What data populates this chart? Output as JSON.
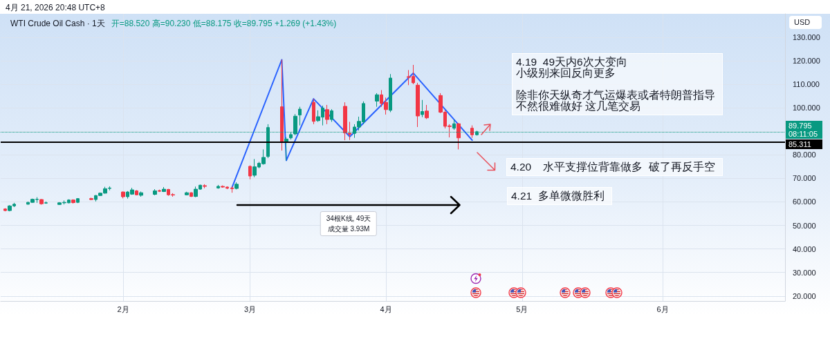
{
  "chart_data": {
    "type": "candlestick",
    "title": "WTI Crude Oil Cash · 1天",
    "subtitle": "开=88.520 高=90.230 低=88.175 收=89.795 +1.269 (+1.43%)",
    "ylabel": "USD",
    "annotations": [
      "4月 21, 2026 20:48 UTC+8",
      "4.19  49天内6次大变向",
      "小级别来回反向更多",
      "除非你天纵奇才气运爆表或者特朗普指导",
      "不然很难做好 这几笔交易",
      "4.20    水平支撑位背靠做多  破了再反手空",
      "4.21  多单微微胜利",
      "34根K线, 49天",
      "成交量 3.93M"
    ],
    "x": [
      "2026-01-07",
      "2026-01-08",
      "2026-01-09",
      "2026-01-12",
      "2026-01-13",
      "2026-01-14",
      "2026-01-15",
      "2026-01-16",
      "2026-01-19",
      "2026-01-20",
      "2026-01-21",
      "2026-01-22",
      "2026-01-23",
      "2026-01-26",
      "2026-01-27",
      "2026-01-28",
      "2026-01-29",
      "2026-01-30",
      "2026-02-02",
      "2026-02-03",
      "2026-02-04",
      "2026-02-05",
      "2026-02-06",
      "2026-02-09",
      "2026-02-10",
      "2026-02-11",
      "2026-02-12",
      "2026-02-13",
      "2026-02-16",
      "2026-02-17",
      "2026-02-18",
      "2026-02-19",
      "2026-02-20",
      "2026-02-23",
      "2026-02-24",
      "2026-02-25",
      "2026-02-26",
      "2026-02-27",
      "2026-03-02",
      "2026-03-03",
      "2026-03-04",
      "2026-03-05",
      "2026-03-06",
      "2026-03-09",
      "2026-03-10",
      "2026-03-11",
      "2026-03-12",
      "2026-03-13",
      "2026-03-16",
      "2026-03-17",
      "2026-03-18",
      "2026-03-19",
      "2026-03-20",
      "2026-03-23",
      "2026-03-24",
      "2026-03-25",
      "2026-03-26",
      "2026-03-27",
      "2026-03-30",
      "2026-03-31",
      "2026-04-01",
      "2026-04-02",
      "2026-04-06",
      "2026-04-07",
      "2026-04-08",
      "2026-04-09",
      "2026-04-10",
      "2026-04-13",
      "2026-04-14",
      "2026-04-15",
      "2026-04-16",
      "2026-04-17",
      "2026-04-20",
      "2026-04-21"
    ],
    "ohlc": [
      [
        57.0,
        57.3,
        56.0,
        56.3
      ],
      [
        56.3,
        58.6,
        56.0,
        58.3
      ],
      [
        58.3,
        59.6,
        57.8,
        59.0
      ],
      [
        59.0,
        60.1,
        58.8,
        59.8
      ],
      [
        59.8,
        61.4,
        59.6,
        61.1
      ],
      [
        61.0,
        62.0,
        59.6,
        61.1
      ],
      [
        61.0,
        61.2,
        58.8,
        59.2
      ],
      [
        59.5,
        60.2,
        59.2,
        59.6
      ],
      [
        58.9,
        59.9,
        58.7,
        59.6
      ],
      [
        59.6,
        60.6,
        58.9,
        59.8
      ],
      [
        59.6,
        61.1,
        59.4,
        60.8
      ],
      [
        60.8,
        61.1,
        59.3,
        59.7
      ],
      [
        59.8,
        61.6,
        59.5,
        61.4
      ],
      [
        61.4,
        61.8,
        60.7,
        61.0
      ],
      [
        61.0,
        62.9,
        60.2,
        62.7
      ],
      [
        62.7,
        64.0,
        62.5,
        63.7
      ],
      [
        63.7,
        66.4,
        63.5,
        65.6
      ],
      [
        65.7,
        66.6,
        64.9,
        65.9
      ],
      [
        64.2,
        64.4,
        61.5,
        62.2
      ],
      [
        62.2,
        64.6,
        61.4,
        64.2
      ],
      [
        63.3,
        66.0,
        63.0,
        65.1
      ],
      [
        64.7,
        65.0,
        62.8,
        63.0
      ],
      [
        62.8,
        64.4,
        62.2,
        63.9
      ],
      [
        63.2,
        65.4,
        62.8,
        64.7
      ],
      [
        64.8,
        65.2,
        64.2,
        64.5
      ],
      [
        64.4,
        66.3,
        64.2,
        65.4
      ],
      [
        65.3,
        65.5,
        62.6,
        63.0
      ],
      [
        63.1,
        63.7,
        62.2,
        62.9
      ],
      [
        63.0,
        64.3,
        62.8,
        63.9
      ],
      [
        63.9,
        64.1,
        62.1,
        62.3
      ],
      [
        62.3,
        66.5,
        62.0,
        65.4
      ],
      [
        65.4,
        67.3,
        65.2,
        67.1
      ],
      [
        66.9,
        67.5,
        65.8,
        66.6
      ],
      [
        65.9,
        67.2,
        65.6,
        66.6
      ],
      [
        66.6,
        67.0,
        66.0,
        66.3
      ],
      [
        66.3,
        66.6,
        65.4,
        65.8
      ],
      [
        65.9,
        66.6,
        63.9,
        65.6
      ],
      [
        65.7,
        68.3,
        65.3,
        67.5
      ],
      [
        75.1,
        75.5,
        69.6,
        71.0
      ],
      [
        71.3,
        78.2,
        70.5,
        74.9
      ],
      [
        74.8,
        77.0,
        74.3,
        76.4
      ],
      [
        76.2,
        82.3,
        75.8,
        78.9
      ],
      [
        79.3,
        93.0,
        78.6,
        91.6
      ],
      [
        100.4,
        120.4,
        81.8,
        85.2
      ],
      [
        85.4,
        87.5,
        77.6,
        86.7
      ],
      [
        87.2,
        89.5,
        86.5,
        88.6
      ],
      [
        88.9,
        97.3,
        88.3,
        96.4
      ],
      [
        96.9,
        100.4,
        92.5,
        99.4
      ],
      [
        102.3,
        103.8,
        93.0,
        94.2
      ],
      [
        94.5,
        98.9,
        94.0,
        96.2
      ],
      [
        96.0,
        100.9,
        92.5,
        99.9
      ],
      [
        99.2,
        101.2,
        93.0,
        95.0
      ],
      [
        95.0,
        99.4,
        94.0,
        98.7
      ],
      [
        100.6,
        102.3,
        86.2,
        89.3
      ],
      [
        89.2,
        94.0,
        86.3,
        88.7
      ],
      [
        89.1,
        93.0,
        87.2,
        91.8
      ],
      [
        91.8,
        96.2,
        90.3,
        94.2
      ],
      [
        94.0,
        102.7,
        93.0,
        101.8
      ],
      [
        102.8,
        106.2,
        100.4,
        105.5
      ],
      [
        105.5,
        107.5,
        100.4,
        101.8
      ],
      [
        102.3,
        104.3,
        97.1,
        99.2
      ],
      [
        98.9,
        114.3,
        98.1,
        112.6
      ],
      [
        113.2,
        116.0,
        109.6,
        112.9
      ],
      [
        113.3,
        118.2,
        110.0,
        110.6
      ],
      [
        109.6,
        110.6,
        91.8,
        96.5
      ],
      [
        97.1,
        103.3,
        96.0,
        98.4
      ],
      [
        98.6,
        101.2,
        95.2,
        95.7
      ],
      [
        105.2,
        106.2,
        97.7,
        98.1
      ],
      [
        98.1,
        98.9,
        91.2,
        92.1
      ],
      [
        92.3,
        93.0,
        87.4,
        92.0
      ],
      [
        91.3,
        94.9,
        90.6,
        93.2
      ],
      [
        93.2,
        93.5,
        82.3,
        87.2
      ],
      [
        91.3,
        92.5,
        87.2,
        88.5
      ],
      [
        88.52,
        90.23,
        88.175,
        89.795
      ]
    ],
    "colors": [
      "#f23645",
      "#089981",
      "#089981",
      "#089981",
      "#089981",
      "#089981",
      "#f23645",
      "#089981",
      "#089981",
      "#089981",
      "#089981",
      "#f23645",
      "#089981",
      "#f23645",
      "#089981",
      "#089981",
      "#089981",
      "#089981",
      "#f23645",
      "#089981",
      "#089981",
      "#f23645",
      "#089981",
      "#089981",
      "#f23645",
      "#089981",
      "#f23645",
      "#f23645",
      "#089981",
      "#f23645",
      "#089981",
      "#089981",
      "#f23645",
      "#089981",
      "#f23645",
      "#f23645",
      "#f23645",
      "#089981",
      "#f23645",
      "#089981",
      "#089981",
      "#089981",
      "#089981",
      "#f23645",
      "#089981",
      "#089981",
      "#089981",
      "#089981",
      "#f23645",
      "#089981",
      "#089981",
      "#f23645",
      "#089981",
      "#f23645",
      "#f23645",
      "#089981",
      "#089981",
      "#089981",
      "#089981",
      "#f23645",
      "#f23645",
      "#089981",
      "#f23645",
      "#f23645",
      "#f23645",
      "#089981",
      "#f23645",
      "#f23645",
      "#f23645",
      "#f23645",
      "#089981",
      "#f23645",
      "#f23645",
      "#089981"
    ],
    "series": [
      {
        "type": "line",
        "x": [
          "2026-02-26",
          "2026-03-09",
          "2026-03-10",
          "2026-03-16",
          "2026-03-24",
          "2026-04-07",
          "2026-04-20"
        ],
        "values": [
          66.0,
          120.4,
          77.6,
          103.8,
          87.7,
          114.7,
          86.2
        ],
        "color": "#2962ff"
      }
    ],
    "xlim": [
      "2026-01-06",
      "2026-06-28"
    ],
    "xticks": [
      {
        "value": "2026-02-02",
        "label": "2月"
      },
      {
        "value": "2026-03-02",
        "label": "3月"
      },
      {
        "value": "2026-04-01",
        "label": "4月"
      },
      {
        "value": "2026-05-01",
        "label": "5月"
      },
      {
        "value": "2026-06-01",
        "label": "6月"
      }
    ],
    "ylim": [
      17.9,
      139.9
    ],
    "yticks": [
      {
        "value": 20,
        "label": "20.000"
      },
      {
        "value": 30,
        "label": "30.000"
      },
      {
        "value": 40,
        "label": "40.000"
      },
      {
        "value": 50,
        "label": "50.000"
      },
      {
        "value": 60,
        "label": "60.000"
      },
      {
        "value": 70,
        "label": "70.000"
      },
      {
        "value": 80,
        "label": "80.000"
      },
      {
        "value": 90,
        "label": null
      },
      {
        "value": 100,
        "label": "100.000"
      },
      {
        "value": 110,
        "label": "110.000"
      },
      {
        "value": 120,
        "label": "120.000"
      },
      {
        "value": 130,
        "label": "130.000"
      }
    ],
    "ref_lines": [
      {
        "axis": "y",
        "value": 85.311,
        "label": "85.311",
        "color": "#000000",
        "line_style": "solid"
      },
      {
        "axis": "y",
        "value": 89.795,
        "label": "89.795\n08:11:05",
        "color": "#089981",
        "line_style": "dotted"
      }
    ],
    "grid": true
  }
}
